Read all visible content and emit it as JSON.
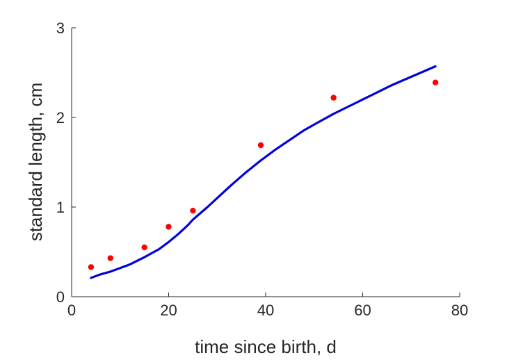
{
  "chart_data": {
    "type": "scatter",
    "title": "",
    "xlabel": "time since birth, d",
    "ylabel": "standard length, cm",
    "xlim": [
      0,
      80
    ],
    "ylim": [
      0,
      3
    ],
    "xticks": [
      0,
      20,
      40,
      60,
      80
    ],
    "yticks": [
      0,
      1,
      2,
      3
    ],
    "grid": false,
    "legend": "none",
    "series": [
      {
        "kind": "points",
        "color": "#ff0000",
        "x": [
          4,
          8,
          15,
          20,
          25,
          39,
          54,
          75
        ],
        "y": [
          0.33,
          0.43,
          0.55,
          0.78,
          0.96,
          1.69,
          2.22,
          2.39
        ]
      },
      {
        "kind": "line",
        "color": "#0000e0",
        "x": [
          4,
          6,
          8,
          10,
          12,
          15,
          18,
          20,
          22,
          24,
          25,
          28,
          30,
          33,
          36,
          39,
          42,
          45,
          48,
          51,
          54,
          57,
          60,
          63,
          66,
          69,
          72,
          75
        ],
        "y": [
          0.21,
          0.25,
          0.28,
          0.32,
          0.36,
          0.44,
          0.53,
          0.61,
          0.7,
          0.8,
          0.86,
          1.0,
          1.1,
          1.25,
          1.39,
          1.52,
          1.64,
          1.75,
          1.86,
          1.95,
          2.04,
          2.12,
          2.2,
          2.28,
          2.36,
          2.43,
          2.5,
          2.57
        ]
      }
    ]
  }
}
